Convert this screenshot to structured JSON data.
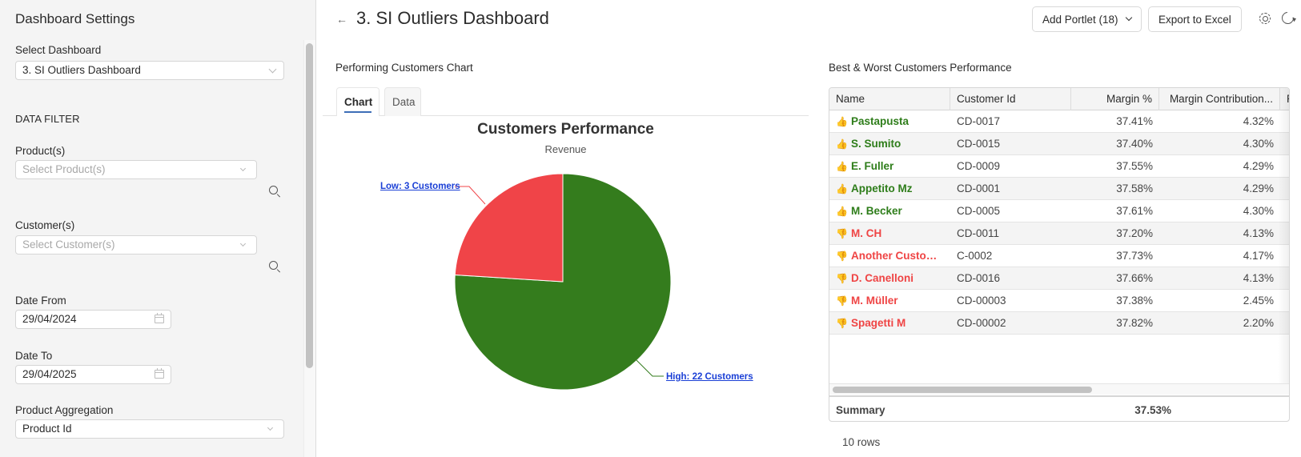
{
  "sidebar": {
    "title": "Dashboard Settings",
    "select_dashboard": {
      "label": "Select Dashboard",
      "value": "3. SI Outliers Dashboard"
    },
    "section_title": "DATA FILTER",
    "products": {
      "label": "Product(s)",
      "placeholder": "Select Product(s)"
    },
    "customers": {
      "label": "Customer(s)",
      "placeholder": "Select Customer(s)"
    },
    "date_from": {
      "label": "Date From",
      "value": "29/04/2024"
    },
    "date_to": {
      "label": "Date To",
      "value": "29/04/2025"
    },
    "product_aggregation": {
      "label": "Product Aggregation",
      "value": "Product Id"
    }
  },
  "header": {
    "back_icon": "←",
    "title": "3. SI Outliers Dashboard",
    "add_portlet_label": "Add Portlet (18)",
    "export_label": "Export to Excel",
    "settings_icon": "gear-icon",
    "refresh_icon": "refresh-icon"
  },
  "chart_portlet": {
    "title": "Performing Customers Chart",
    "tabs": [
      {
        "label": "Chart",
        "active": true
      },
      {
        "label": "Data",
        "active": false
      }
    ]
  },
  "chart_data": {
    "type": "pie",
    "title": "Customers Performance",
    "subtitle": "Revenue",
    "categories": [
      "High",
      "Low"
    ],
    "values": [
      76,
      24
    ],
    "labels": [
      "High: 22 Customers",
      "Low: 3 Customers"
    ],
    "customer_counts": [
      22,
      3
    ],
    "colors": [
      "#347c1d",
      "#f04448"
    ],
    "legend": "none (data labels with connectors)"
  },
  "table_portlet": {
    "title": "Best & Worst Customers Performance",
    "columns": [
      "Name",
      "Customer Id",
      "Margin %",
      "Margin Contribution...",
      "R"
    ],
    "rows": [
      {
        "name": "Pastapusta",
        "status": "good",
        "customer_id": "CD-0017",
        "margin": "37.41%",
        "contribution": "4.32%"
      },
      {
        "name": "S. Sumito",
        "status": "good",
        "customer_id": "CD-0015",
        "margin": "37.40%",
        "contribution": "4.30%"
      },
      {
        "name": "E. Fuller",
        "status": "good",
        "customer_id": "CD-0009",
        "margin": "37.55%",
        "contribution": "4.29%"
      },
      {
        "name": "Appetito Mz",
        "status": "good",
        "customer_id": "CD-0001",
        "margin": "37.58%",
        "contribution": "4.29%"
      },
      {
        "name": "M. Becker",
        "status": "good",
        "customer_id": "CD-0005",
        "margin": "37.61%",
        "contribution": "4.30%"
      },
      {
        "name": "M. CH",
        "status": "bad",
        "customer_id": "CD-0011",
        "margin": "37.20%",
        "contribution": "4.13%"
      },
      {
        "name": "Another Custom...",
        "status": "bad",
        "customer_id": "C-0002",
        "margin": "37.73%",
        "contribution": "4.17%"
      },
      {
        "name": "D. Canelloni",
        "status": "bad",
        "customer_id": "CD-0016",
        "margin": "37.66%",
        "contribution": "4.13%"
      },
      {
        "name": "M. Müller",
        "status": "bad",
        "customer_id": "CD-00003",
        "margin": "37.38%",
        "contribution": "2.45%"
      },
      {
        "name": "Spagetti M",
        "status": "bad",
        "customer_id": "CD-00002",
        "margin": "37.82%",
        "contribution": "2.20%"
      }
    ],
    "summary_label": "Summary",
    "summary_margin": "37.53%",
    "row_count": "10 rows",
    "icons": {
      "good": "👍",
      "bad": "👎"
    }
  }
}
